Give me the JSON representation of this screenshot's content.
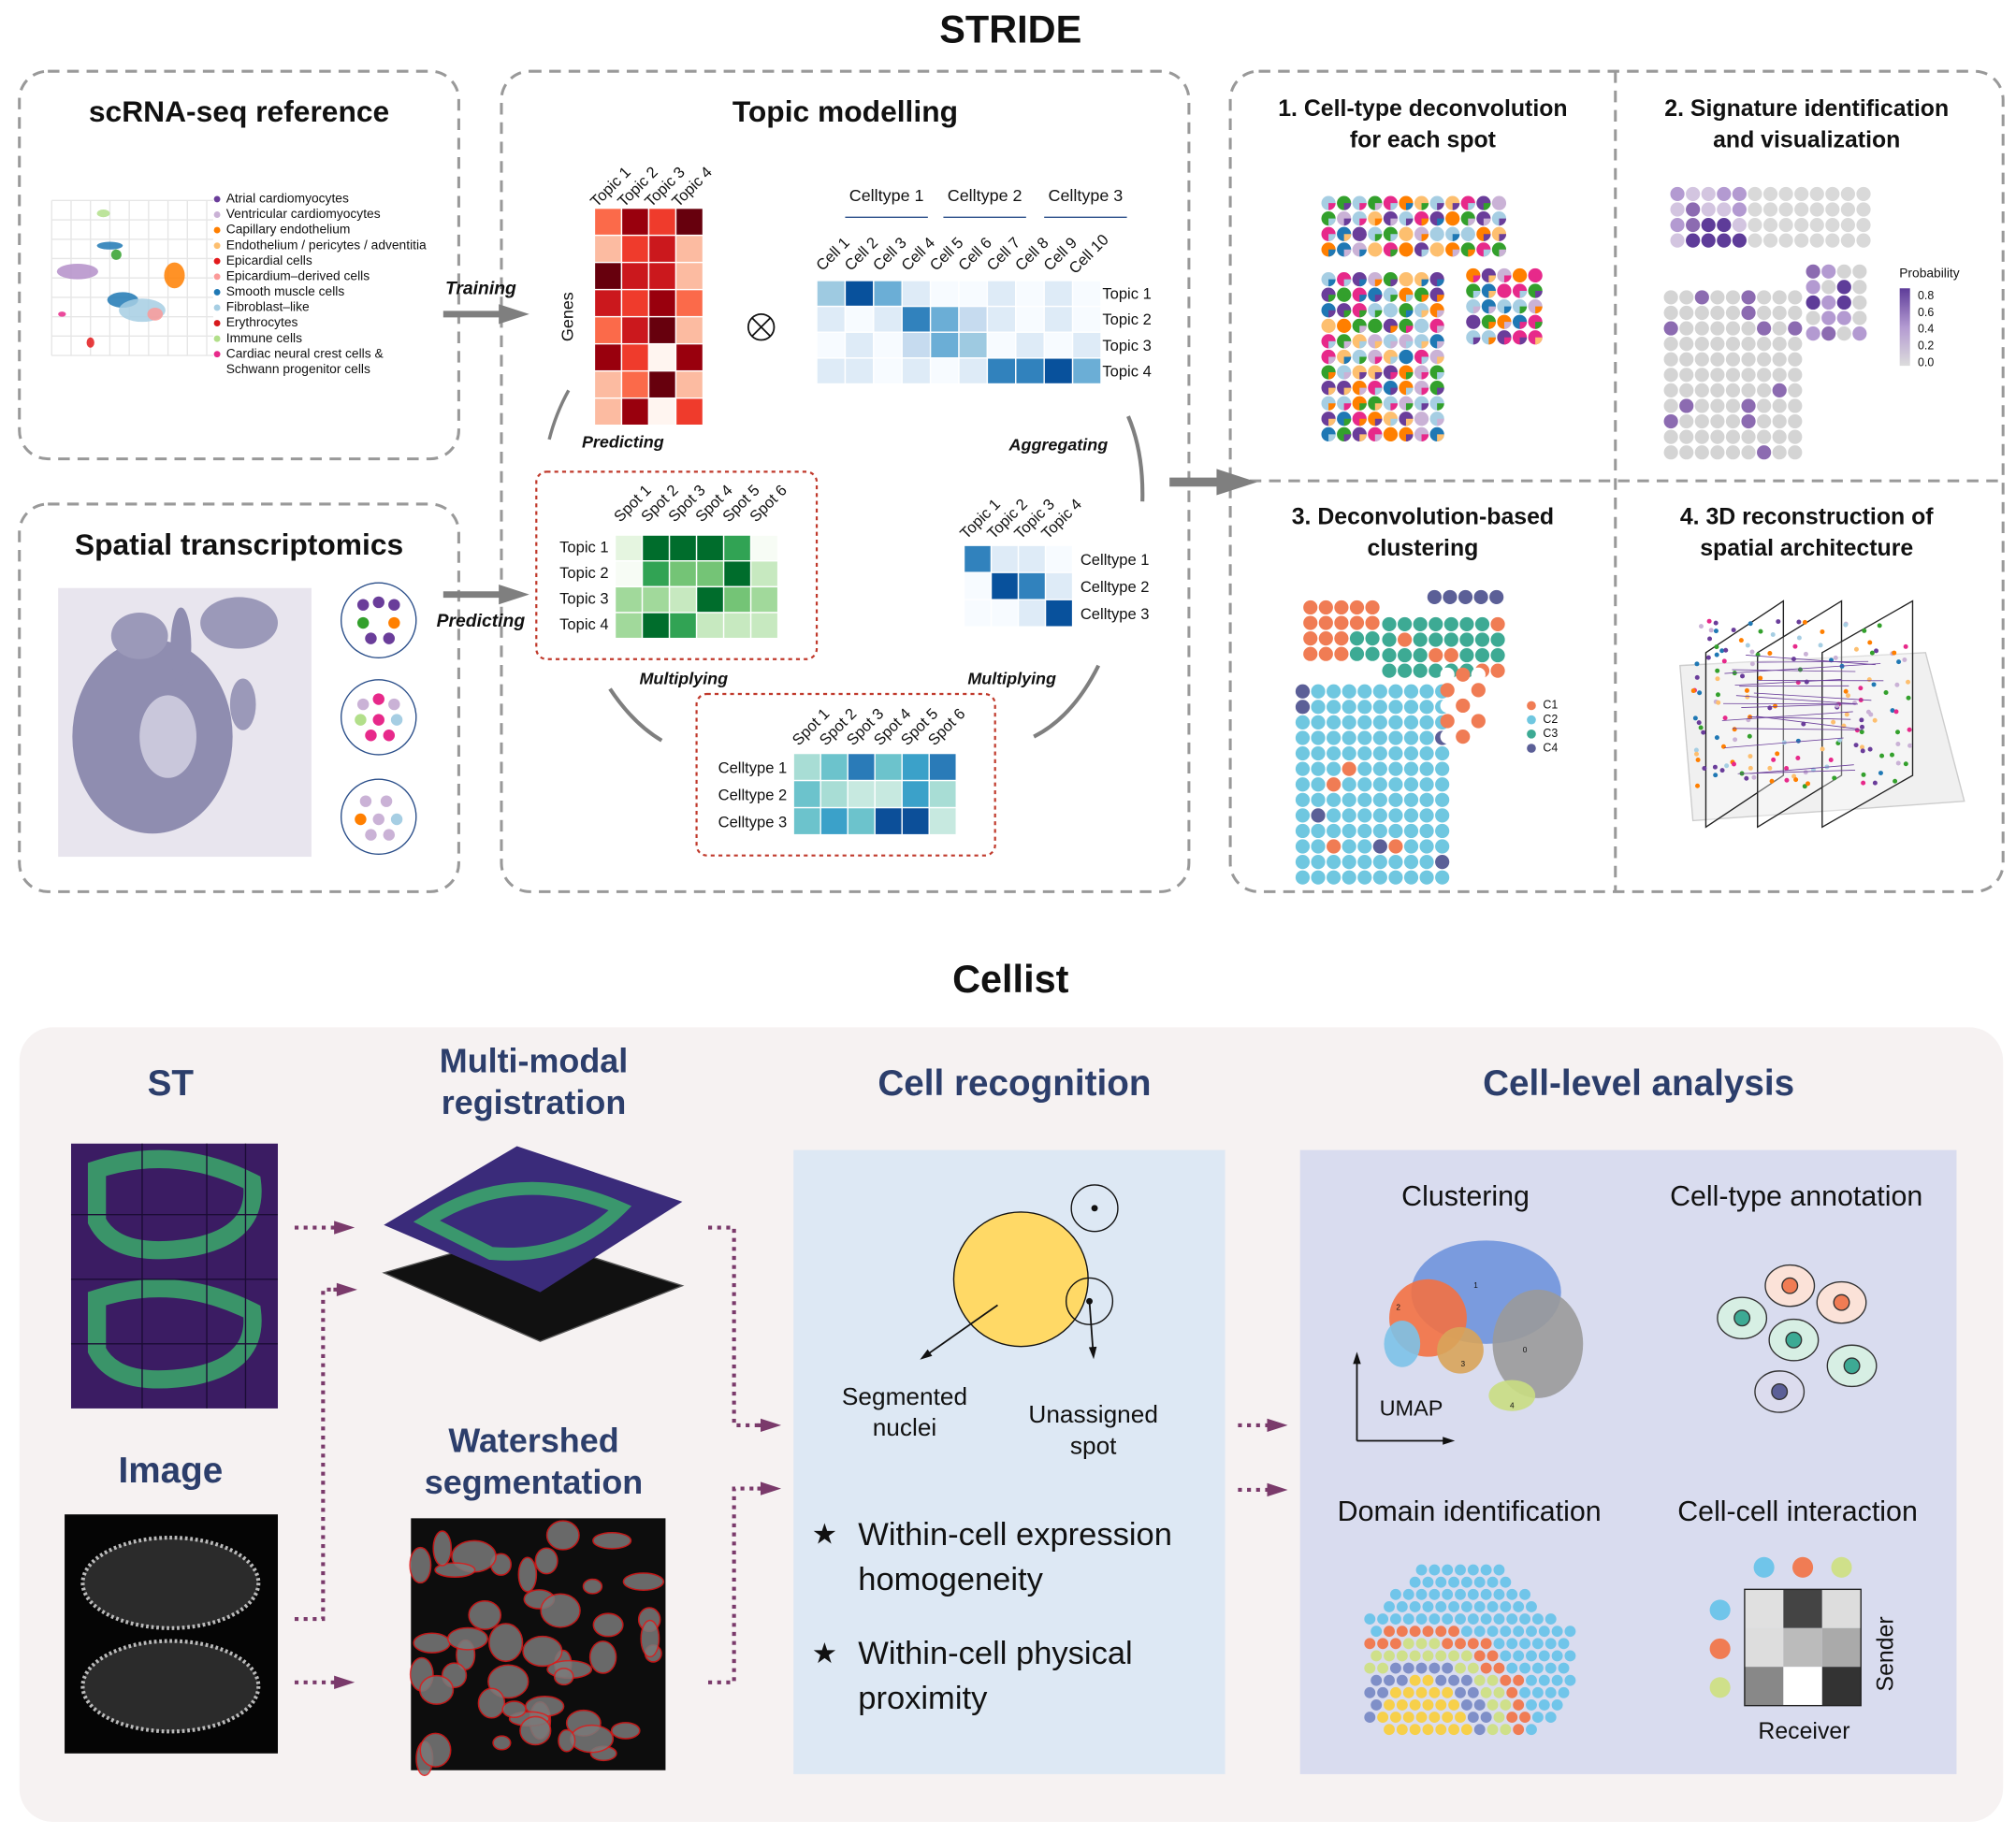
{
  "stride": {
    "title": "STRIDE",
    "scrna": {
      "title": "scRNA-seq reference",
      "legend": [
        "Atrial cardiomyocytes",
        "Ventricular cardiomyocytes",
        "Capillary endothelium",
        "Endothelium / pericytes / adventitia",
        "Epicardial cells",
        "Epicardium–derived cells",
        "Smooth muscle cells",
        "Fibroblast–like",
        "Erythrocytes",
        "Immune cells",
        "Cardiac neural crest cells &",
        "Schwann progenitor cells"
      ]
    },
    "spatial": {
      "title": "Spatial transcriptomics"
    },
    "topic": {
      "title": "Topic modelling",
      "topics": [
        "Topic 1",
        "Topic 2",
        "Topic 3",
        "Topic 4"
      ],
      "genes": "Genes",
      "celltype_groups": [
        "Celltype 1",
        "Celltype 2",
        "Celltype 3"
      ],
      "cells": [
        "Cell 1",
        "Cell 2",
        "Cell 3",
        "Cell 4",
        "Cell 5",
        "Cell 6",
        "Cell 7",
        "Cell 8",
        "Cell 9",
        "Cell 10"
      ],
      "spots": [
        "Spot 1",
        "Spot 2",
        "Spot 3",
        "Spot 4",
        "Spot 5",
        "Spot 6"
      ],
      "celltypes": [
        "Celltype 1",
        "Celltype 2",
        "Celltype 3"
      ]
    },
    "flow": {
      "training": "Training",
      "predicting_1": "Predicting",
      "predicting_2": "Predicting",
      "aggregating": "Aggregating",
      "multiplying_1": "Multiplying",
      "multiplying_2": "Multiplying"
    },
    "applications": [
      {
        "title": [
          "1. Cell-type deconvolution",
          "for each spot"
        ]
      },
      {
        "title": [
          "2. Signature identification",
          "and visualization"
        ],
        "legend_title": "Probability",
        "legend_ticks": [
          "0.8",
          "0.6",
          "0.4",
          "0.2",
          "0.0"
        ]
      },
      {
        "title": [
          "3. Deconvolution-based",
          "clustering"
        ],
        "clusters": [
          "C1",
          "C2",
          "C3",
          "C4"
        ]
      },
      {
        "title": [
          "4. 3D reconstruction of",
          "spatial architecture"
        ]
      }
    ]
  },
  "cellist": {
    "title": "Cellist",
    "st": "ST",
    "image": "Image",
    "registration": [
      "Multi-modal",
      "registration"
    ],
    "watershed": [
      "Watershed",
      "segmentation"
    ],
    "recognition": {
      "title": "Cell recognition",
      "segmented": [
        "Segmented",
        "nuclei"
      ],
      "unassigned": [
        "Unassigned",
        "spot"
      ],
      "bullets": [
        [
          "Within-cell expression",
          "homogeneity"
        ],
        [
          "Within-cell physical",
          "proximity"
        ]
      ]
    },
    "analysis": {
      "title": "Cell-level analysis",
      "clustering": "Clustering",
      "umap": "UMAP",
      "umap_clusters": [
        "0",
        "1",
        "2",
        "3",
        "4"
      ],
      "annotation": "Cell-type annotation",
      "domain": "Domain identification",
      "interaction": "Cell-cell interaction",
      "sender": "Sender",
      "receiver": "Receiver"
    }
  }
}
